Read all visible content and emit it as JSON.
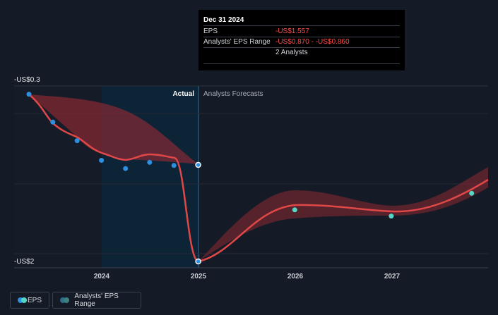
{
  "tooltip": {
    "date": "Dec 31 2024",
    "rows": [
      {
        "label": "EPS",
        "value": "-US$1.557"
      },
      {
        "label": "Analysts' EPS Range",
        "value": "-US$0.870 - -US$0.860"
      },
      {
        "label": "",
        "value": "2 Analysts"
      }
    ]
  },
  "sections": {
    "actual": "Actual",
    "forecast": "Analysts Forecasts"
  },
  "legend": {
    "eps": "EPS",
    "range": "Analysts' EPS Range"
  },
  "colors": {
    "background": "#151b26",
    "actual_region": "#0e2538",
    "eps_line": "#e04848",
    "range_fill": "#a82c34",
    "dot_actual": "#2e8fe0",
    "dot_forecast": "#57d6c8"
  },
  "chart_data": {
    "type": "line",
    "y_ticks": [
      "-US$0.3",
      "-US$2"
    ],
    "ylim": [
      -2,
      -0.3
    ],
    "x_ticks": [
      "2024",
      "2025",
      "2026",
      "2027"
    ],
    "series": [
      {
        "name": "EPS",
        "points": [
          {
            "x": "2023-03-31",
            "y": -0.38
          },
          {
            "x": "2023-06-30",
            "y": -0.65
          },
          {
            "x": "2023-09-30",
            "y": -0.83
          },
          {
            "x": "2023-12-31",
            "y": -1.02
          },
          {
            "x": "2024-03-31",
            "y": -1.1
          },
          {
            "x": "2024-06-30",
            "y": -1.04
          },
          {
            "x": "2024-09-30",
            "y": -1.07
          },
          {
            "x": "2024-12-31",
            "y": -1.557
          }
        ]
      },
      {
        "name": "EPS forecast",
        "points": [
          {
            "x": "2024-12-31",
            "y": -2.0
          },
          {
            "x": "2025-12-31",
            "y": -1.5
          },
          {
            "x": "2026-12-31",
            "y": -1.56
          },
          {
            "x": "2027-10-31",
            "y": -1.34
          }
        ]
      }
    ],
    "range": {
      "name": "Analysts' EPS Range",
      "actual_band": [
        {
          "x": "2023-03-31",
          "low": -0.38,
          "high": -0.38
        },
        {
          "x": "2024-12-31",
          "low": -0.87,
          "high": -0.86
        }
      ],
      "forecast_band": [
        {
          "x": "2024-12-31",
          "low": -2.0,
          "high": -2.0
        },
        {
          "x": "2025-12-31",
          "low": -1.62,
          "high": -1.4
        },
        {
          "x": "2026-12-31",
          "low": -1.62,
          "high": -1.48
        },
        {
          "x": "2027-10-31",
          "low": -1.45,
          "high": -1.2
        }
      ]
    },
    "grid": true,
    "legend_position": "bottom-left"
  }
}
